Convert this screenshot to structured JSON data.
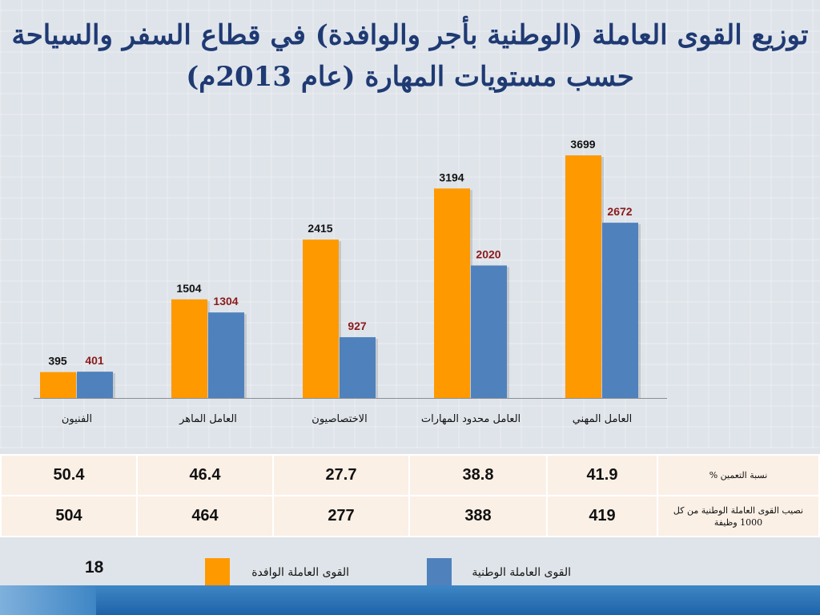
{
  "title": {
    "line1": "توزيع القوى العاملة (الوطنية بأجر والوافدة) في قطاع السفر والسياحة",
    "line2": "حسب مستويات المهارة (عام 2013م)"
  },
  "colors": {
    "expat": "#ff9900",
    "national": "#4f81bd",
    "label_national": "#8b1a1a"
  },
  "chart_data": {
    "type": "bar",
    "categories": [
      "الفنيون",
      "العامل الماهر",
      "الاختصاصيون",
      "العامل محدود المهارات",
      "العامل المهني"
    ],
    "series": [
      {
        "name": "القوى العاملة الوافدة",
        "values": [
          395,
          1504,
          2415,
          3194,
          3699
        ]
      },
      {
        "name": "القوى العاملة الوطنية",
        "values": [
          401,
          1304,
          927,
          2020,
          2672
        ]
      }
    ],
    "value_labels": {
      "expat": [
        "395",
        "1504",
        "2415",
        "3194",
        "3699"
      ],
      "national": [
        "401",
        "1304",
        "927",
        "2020",
        "2672"
      ]
    },
    "ylim": [
      0,
      3900
    ],
    "legend": "bottom"
  },
  "table": {
    "rows": [
      {
        "label": "نسبة التعمين %",
        "values": [
          "50.4",
          "46.4",
          "27.7",
          "38.8",
          "41.9"
        ]
      },
      {
        "label": "نصيب القوى العاملة الوطنية من كل 1000 وظيفة",
        "values": [
          "504",
          "464",
          "277",
          "388",
          "419"
        ]
      }
    ]
  },
  "footer": {
    "page_number": "18"
  },
  "legend": {
    "expat_label": "القوى العاملة الوافدة",
    "national_label": "القوى العاملة الوطنية"
  }
}
